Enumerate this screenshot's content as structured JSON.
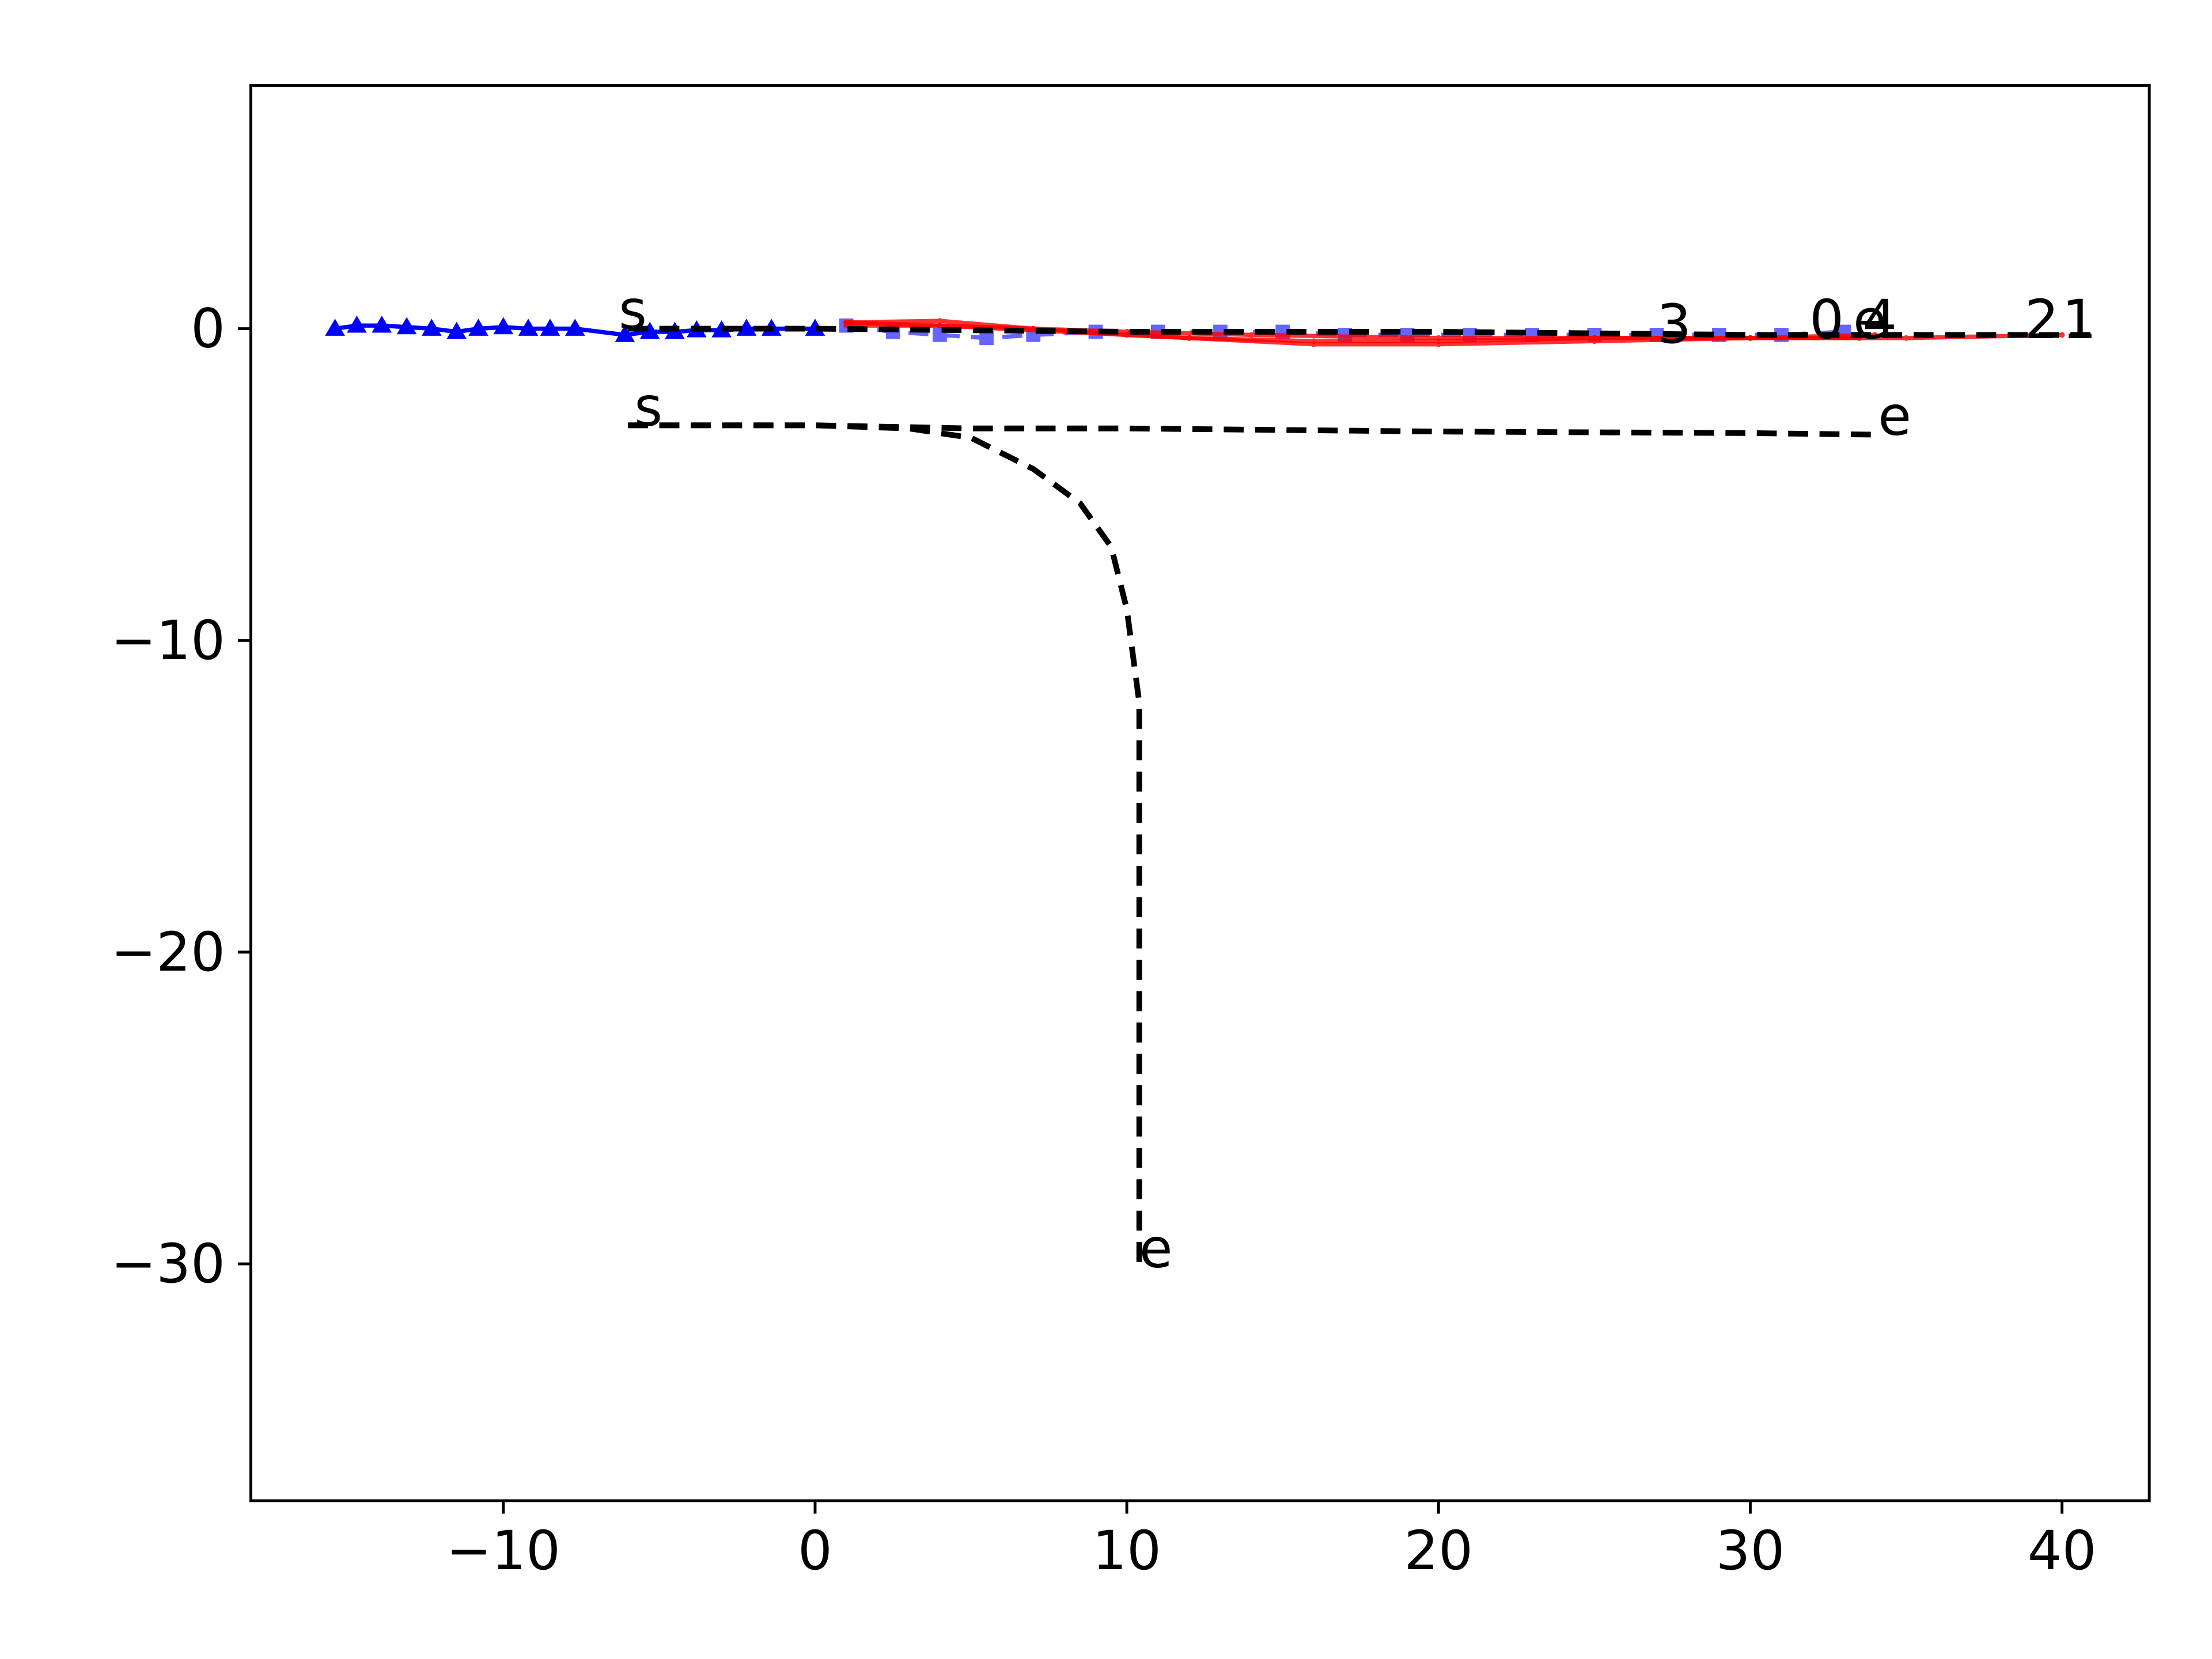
{
  "chart_data": {
    "type": "line",
    "xlim": [
      -18.1,
      42.8
    ],
    "ylim": [
      -37.6,
      7.8
    ],
    "xticks": [
      {
        "value": -10,
        "label": "−10"
      },
      0,
      10,
      20,
      30,
      40
    ],
    "yticks": [
      0,
      {
        "value": -10,
        "label": "−10"
      },
      {
        "value": -20,
        "label": "−20"
      },
      {
        "value": -30,
        "label": "−30"
      }
    ],
    "series": [
      {
        "color": "#0000ff",
        "marker": "triangle",
        "linestyle": "solid",
        "alpha": 1,
        "x": [
          -15.4,
          -14.7,
          -13.9,
          -13.1,
          -12.3,
          -11.5,
          -10.8,
          -10.0,
          -9.2,
          -8.5,
          -7.7,
          -6.1,
          -5.3,
          -4.5,
          -3.8,
          -3.0,
          -2.2,
          -1.4,
          0
        ],
        "y": [
          0,
          0.1,
          0.1,
          0.05,
          0,
          -0.1,
          0,
          0.05,
          0,
          0,
          0,
          -0.2,
          -0.1,
          -0.1,
          -0.05,
          -0.05,
          0,
          0,
          0
        ]
      },
      {
        "color": "#0000ff",
        "marker": "square",
        "linestyle": "dashed",
        "alpha": 0.6,
        "x": [
          1,
          2.5,
          4,
          5.5,
          7,
          9,
          11,
          13,
          15,
          17,
          19,
          21,
          23,
          25,
          27,
          29,
          31,
          33
        ],
        "y": [
          0.1,
          -0.1,
          -0.2,
          -0.3,
          -0.2,
          -0.1,
          -0.1,
          -0.1,
          -0.1,
          -0.2,
          -0.2,
          -0.2,
          -0.2,
          -0.2,
          -0.2,
          -0.2,
          -0.2,
          -0.1
        ]
      },
      {
        "color": "#ff0000",
        "marker": "dot",
        "linestyle": "solid",
        "alpha": 0.8,
        "x": [
          1,
          4,
          7,
          10,
          12,
          16,
          20,
          25,
          30,
          35,
          40
        ],
        "y": [
          0.2,
          0.25,
          0,
          -0.2,
          -0.3,
          -0.5,
          -0.5,
          -0.4,
          -0.3,
          -0.3,
          -0.2
        ]
      },
      {
        "color": "#ff0000",
        "marker": "dot",
        "linestyle": "solid",
        "alpha": 0.8,
        "x": [
          1,
          4,
          7,
          10,
          14,
          20,
          25,
          30,
          34
        ],
        "y": [
          0.1,
          0.1,
          0,
          -0.1,
          -0.2,
          -0.3,
          -0.3,
          -0.3,
          -0.2
        ]
      },
      {
        "color": "#ff0000",
        "marker": "dot",
        "linestyle": "solid",
        "alpha": 0.8,
        "x": [
          1,
          4,
          8,
          12,
          16,
          20,
          25,
          30,
          33.5
        ],
        "y": [
          0.2,
          0.1,
          -0.1,
          -0.3,
          -0.4,
          -0.4,
          -0.3,
          -0.3,
          -0.3
        ]
      },
      {
        "color": "#000000",
        "marker": "none",
        "linestyle": "dashed",
        "alpha": 1,
        "x": [
          -6,
          0,
          10,
          20,
          30,
          41
        ],
        "y": [
          0,
          0,
          -0.1,
          -0.1,
          -0.2,
          -0.2
        ]
      },
      {
        "color": "#000000",
        "marker": "none",
        "linestyle": "dashed",
        "alpha": 1,
        "x": [
          -6,
          0,
          5,
          10,
          20,
          30,
          34
        ],
        "y": [
          -3.1,
          -3.1,
          -3.2,
          -3.2,
          -3.3,
          -3.35,
          -3.4
        ]
      },
      {
        "color": "#000000",
        "marker": "none",
        "linestyle": "dashed",
        "alpha": 1,
        "x": [
          -6,
          0,
          3,
          5,
          7,
          8.5,
          9.5,
          10,
          10.2,
          10.4,
          10.4,
          10.4
        ],
        "y": [
          -3.1,
          -3.1,
          -3.2,
          -3.5,
          -4.5,
          -5.6,
          -7,
          -9,
          -10.5,
          -12,
          -20,
          -30
        ]
      }
    ],
    "annotations": [
      {
        "text": "s",
        "x": -6.3,
        "y": 0
      },
      {
        "text": "s",
        "x": -5.8,
        "y": -3.1
      },
      {
        "text": "e",
        "x": 34.1,
        "y": -3.4
      },
      {
        "text": "e",
        "x": 10.4,
        "y": -30.1
      },
      {
        "text": "3",
        "x": 27.0,
        "y": -0.45
      },
      {
        "text": "0",
        "x": 31.9,
        "y": -0.3
      },
      {
        "text": "4",
        "x": 33.6,
        "y": -0.3
      },
      {
        "text": "e",
        "x": 33.3,
        "y": -0.3
      },
      {
        "text": "2",
        "x": 38.8,
        "y": -0.3
      },
      {
        "text": "1",
        "x": 40.0,
        "y": -0.3
      }
    ]
  }
}
